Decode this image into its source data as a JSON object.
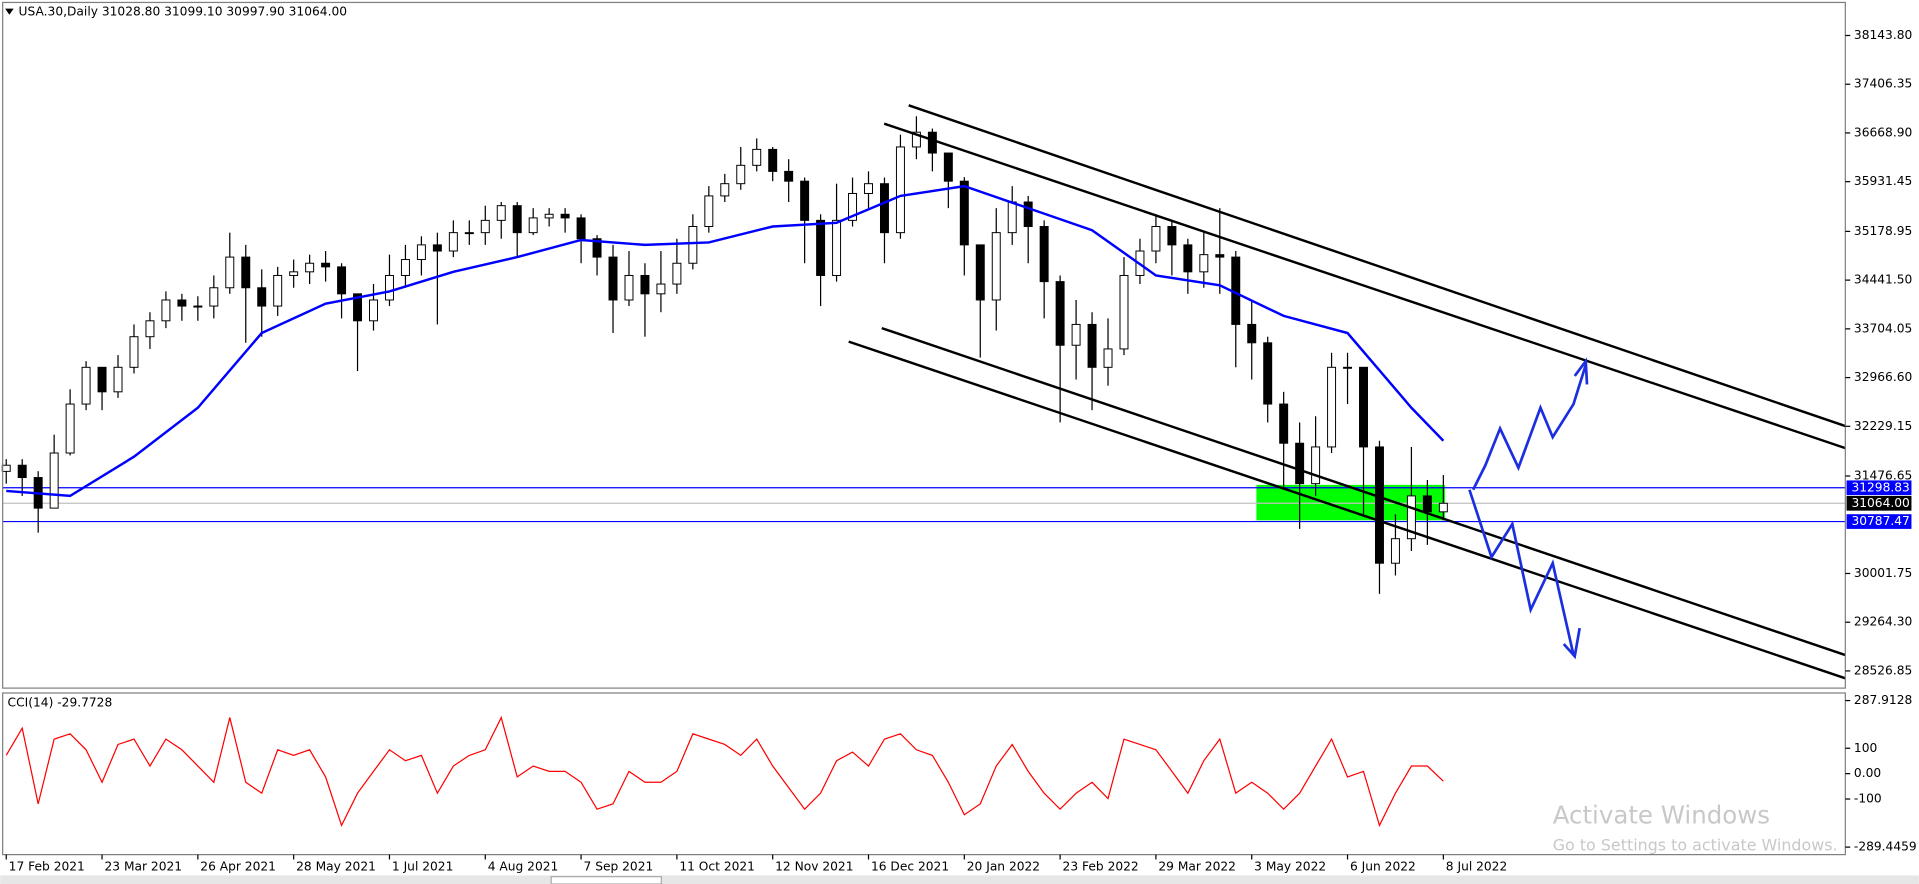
{
  "chart_data": {
    "type": "candlestick",
    "title": "USA.30,Daily 31028.80 31099.10 30997.90 31064.00",
    "x": [
      0,
      4,
      8,
      12,
      16,
      20,
      24,
      28,
      32,
      36,
      40,
      44,
      48,
      52,
      56,
      60,
      64,
      68,
      72,
      76,
      80,
      84,
      88,
      92,
      96,
      100,
      104,
      108,
      112,
      116,
      120,
      124,
      128,
      132,
      136,
      140,
      144,
      148,
      152,
      156,
      160,
      164,
      168,
      172,
      176,
      180,
      184,
      188,
      192,
      196,
      200,
      204,
      208,
      212,
      216,
      220,
      224,
      228,
      232,
      236,
      240,
      244,
      248,
      252,
      256,
      260,
      264,
      268,
      272,
      276,
      280,
      284,
      288,
      292,
      296,
      300,
      304,
      308,
      312,
      316,
      320,
      324,
      328,
      332,
      336,
      340,
      344,
      348,
      352,
      356,
      360
    ],
    "open": [
      31547,
      31640,
      31454,
      30991,
      31825,
      32566,
      33122,
      32751,
      33122,
      33585,
      33826,
      34141,
      34049,
      34049,
      34326,
      34790,
      34326,
      34049,
      34512,
      34567,
      34697,
      34642,
      34234,
      33826,
      34141,
      34512,
      34753,
      34975,
      34882,
      35160,
      35160,
      35346,
      35568,
      35160,
      35383,
      35438,
      35383,
      35068,
      34790,
      34141,
      34512,
      34234,
      34382,
      34697,
      35253,
      35716,
      35901,
      36179,
      36420,
      36087,
      35939,
      35346,
      34512,
      35346,
      35753,
      35901,
      35160,
      36457,
      36680,
      36365,
      35939,
      34975,
      34141,
      35160,
      35624,
      35253,
      34419,
      33456,
      33771,
      33122,
      33400,
      34512,
      34882,
      35253,
      34975,
      34567,
      34827,
      34790,
      33771,
      33493,
      32566,
      31973,
      31361,
      31917,
      33122,
      33122,
      31917,
      30157,
      30528,
      31176,
      30935
    ],
    "high": [
      31732,
      31732,
      31550,
      32103,
      32789,
      33215,
      33122,
      33307,
      33771,
      33956,
      34271,
      34234,
      34197,
      34512,
      35160,
      34975,
      34604,
      34642,
      34753,
      34827,
      34882,
      34697,
      34234,
      34382,
      34827,
      34975,
      35105,
      35160,
      35346,
      35346,
      35568,
      35624,
      35624,
      35531,
      35531,
      35531,
      35438,
      35123,
      34975,
      34882,
      34697,
      34882,
      35068,
      35438,
      35864,
      36050,
      36457,
      36587,
      36457,
      36272,
      35994,
      35438,
      35901,
      35994,
      36087,
      35994,
      36643,
      36921,
      36735,
      36365,
      36000,
      34975,
      35531,
      35864,
      35716,
      35346,
      34512,
      34141,
      33956,
      33863,
      34790,
      35068,
      35438,
      35346,
      35068,
      35160,
      35531,
      34882,
      34141,
      33585,
      32751,
      32288,
      32381,
      33342,
      33342,
      33122,
      32010,
      30898,
      31917,
      31417,
      31491
    ],
    "low": [
      31361,
      31176,
      30620,
      30991,
      31788,
      32474,
      32474,
      32659,
      33029,
      33400,
      33715,
      33826,
      33826,
      33863,
      34234,
      33493,
      33585,
      33900,
      34326,
      34382,
      34419,
      33863,
      33066,
      33678,
      34049,
      34326,
      34512,
      33771,
      34790,
      34975,
      34975,
      35068,
      34790,
      35123,
      35253,
      35160,
      34697,
      34512,
      33641,
      34049,
      33585,
      33956,
      34234,
      34604,
      35160,
      35624,
      35809,
      36087,
      35939,
      35624,
      34697,
      34049,
      34419,
      35253,
      35531,
      34697,
      35068,
      36272,
      36087,
      35531,
      34512,
      33270,
      33678,
      34975,
      34697,
      33863,
      32288,
      32937,
      32474,
      32844,
      33307,
      34382,
      34697,
      34512,
      34234,
      34326,
      34234,
      33122,
      32937,
      32288,
      31269,
      30676,
      31176,
      31825,
      32566,
      30898,
      29693,
      29971,
      30342,
      30435,
      30806
    ],
    "close": [
      31640,
      31454,
      30991,
      31825,
      32566,
      33122,
      32751,
      33122,
      33585,
      33826,
      34141,
      34049,
      34049,
      34326,
      34790,
      34326,
      34049,
      34512,
      34567,
      34697,
      34642,
      34234,
      33826,
      34141,
      34512,
      34753,
      34975,
      34882,
      35160,
      35160,
      35346,
      35568,
      35160,
      35383,
      35438,
      35383,
      35068,
      34790,
      34141,
      34512,
      34234,
      34382,
      34697,
      35253,
      35716,
      35901,
      36179,
      36420,
      36087,
      35939,
      35346,
      34512,
      35346,
      35753,
      35901,
      35160,
      36457,
      36680,
      36365,
      35939,
      34975,
      34141,
      35160,
      35624,
      35253,
      34419,
      33456,
      33771,
      33122,
      33400,
      34512,
      34882,
      35253,
      34975,
      34567,
      34827,
      34790,
      33771,
      33493,
      32566,
      31973,
      31361,
      31917,
      33122,
      33122,
      31917,
      30157,
      30528,
      31176,
      30935,
      31064
    ],
    "color": "#000000",
    "xlim": [
      -0.9,
      460.7
    ],
    "xticks": [
      {
        "value": 0,
        "label": "17 Feb 2021"
      },
      {
        "value": 24,
        "label": "23 Mar 2021"
      },
      {
        "value": 48,
        "label": "26 Apr 2021"
      },
      {
        "value": 72,
        "label": "28 May 2021"
      },
      {
        "value": 96,
        "label": "1 Jul 2021"
      },
      {
        "value": 120,
        "label": "4 Aug 2021"
      },
      {
        "value": 144,
        "label": "7 Sep 2021"
      },
      {
        "value": 168,
        "label": "11 Oct 2021"
      },
      {
        "value": 192,
        "label": "12 Nov 2021"
      },
      {
        "value": 216,
        "label": "16 Dec 2021"
      },
      {
        "value": 240,
        "label": "20 Jan 2022"
      },
      {
        "value": 264,
        "label": "23 Feb 2022"
      },
      {
        "value": 288,
        "label": "29 Mar 2022"
      },
      {
        "value": 312,
        "label": "3 May 2022"
      },
      {
        "value": 336,
        "label": "6 Jun 2022"
      },
      {
        "value": 360,
        "label": "8 Jul 2022"
      }
    ],
    "ylim": [
      28267,
      38644
    ],
    "yticks": [
      {
        "value": 38143.8,
        "label": "38143.80"
      },
      37406.35,
      {
        "value": 36668.9,
        "label": "36668.90"
      },
      35931.45,
      35178.95,
      {
        "value": 34441.5,
        "label": "34441.50"
      },
      33704.05,
      {
        "value": 32966.6,
        "label": "32966.60"
      },
      32229.15,
      31476.65,
      30001.75,
      {
        "value": 29264.3,
        "label": "29264.30"
      },
      28526.85
    ],
    "moving_average": {
      "color": "#0000ff",
      "x": [
        0,
        16,
        32,
        48,
        64,
        80,
        96,
        112,
        128,
        144,
        160,
        176,
        192,
        208,
        224,
        240,
        256,
        272,
        288,
        304,
        320,
        336,
        352,
        360
      ],
      "values": [
        31251,
        31176,
        31769,
        32510,
        33641,
        34086,
        34271,
        34567,
        34790,
        35049,
        34975,
        35012,
        35253,
        35309,
        35716,
        35864,
        35531,
        35197,
        34512,
        34363,
        33900,
        33641,
        32510,
        32010
      ]
    },
    "price_lines": [
      {
        "value": 31298.83,
        "label": "31298.83",
        "color": "#0000ff"
      },
      {
        "value": 31064,
        "label": "31064.00",
        "color": "#000000"
      },
      {
        "value": 30787.47,
        "label": "30787.47",
        "color": "#0000ff"
      }
    ],
    "indicator": {
      "title": "CCI(14) -29.7728",
      "color": "#ff0000",
      "values": [
        72,
        179,
        -119,
        136,
        157,
        94,
        -34,
        115,
        136,
        30,
        136,
        94,
        30,
        -34,
        221,
        -34,
        -77,
        94,
        72,
        94,
        -13,
        -204,
        -77,
        9,
        94,
        51,
        72,
        -77,
        30,
        72,
        94,
        221,
        -13,
        30,
        9,
        9,
        -34,
        -140,
        -119,
        9,
        -34,
        -34,
        9,
        157,
        136,
        115,
        72,
        136,
        30,
        -55,
        -140,
        -77,
        51,
        85,
        30,
        136,
        157,
        94,
        72,
        -34,
        -162,
        -119,
        30,
        115,
        9,
        -77,
        -140,
        -77,
        -34,
        -98,
        136,
        115,
        94,
        9,
        -77,
        51,
        136,
        -77,
        -34,
        -77,
        -140,
        -77,
        30,
        136,
        -13,
        9,
        -204,
        -77,
        30,
        30,
        -29.7728
      ],
      "ylim": [
        -319,
        317.7
      ],
      "yticks": [
        287.9128,
        100,
        {
          "value": 0,
          "label": "0.00"
        },
        -100,
        -289.4459
      ]
    }
  },
  "watermark": {
    "line1": "Activate Windows",
    "line2": "Go to Settings to activate Windows."
  }
}
